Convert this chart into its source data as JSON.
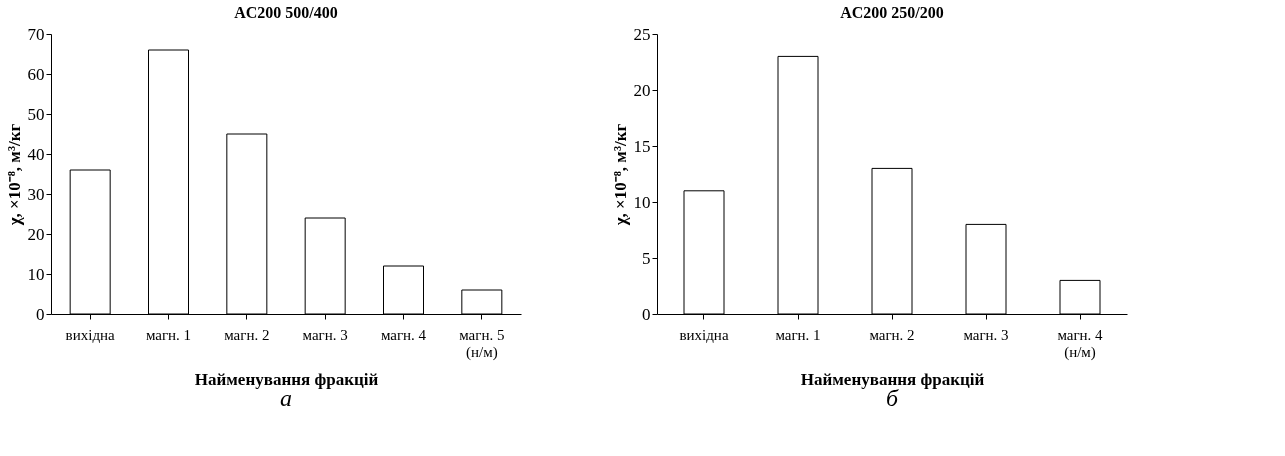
{
  "chart_data": [
    {
      "type": "bar",
      "title": "AC200  500/400",
      "xlabel": "Найменування фракцій",
      "ylabel": "χ, ×10⁻⁸, м³/кг",
      "categories": [
        "вихідна",
        "магн. 1",
        "магн. 2",
        "магн. 3",
        "магн. 4",
        "магн. 5\n(н/м)"
      ],
      "values": [
        36,
        66,
        45,
        24,
        12,
        6
      ],
      "color": "#ffffff",
      "ylim": [
        0,
        70
      ],
      "yticks": [
        0,
        10,
        20,
        30,
        40,
        50,
        60,
        70
      ],
      "grid": false,
      "annotations": [
        "а"
      ]
    },
    {
      "type": "bar",
      "title": "AC200 250/200",
      "xlabel": "Найменування фракцій",
      "ylabel": "χ, ×10⁻⁸, м³/кг",
      "categories": [
        "вихідна",
        "магн. 1",
        "магн. 2",
        "магн. 3",
        "магн. 4\n(н/м)"
      ],
      "values": [
        11,
        23,
        13,
        8,
        3
      ],
      "color": "#ffffff",
      "ylim": [
        0,
        25
      ],
      "yticks": [
        0,
        5,
        10,
        15,
        20,
        25
      ],
      "grid": false,
      "annotations": [
        "б"
      ]
    }
  ]
}
